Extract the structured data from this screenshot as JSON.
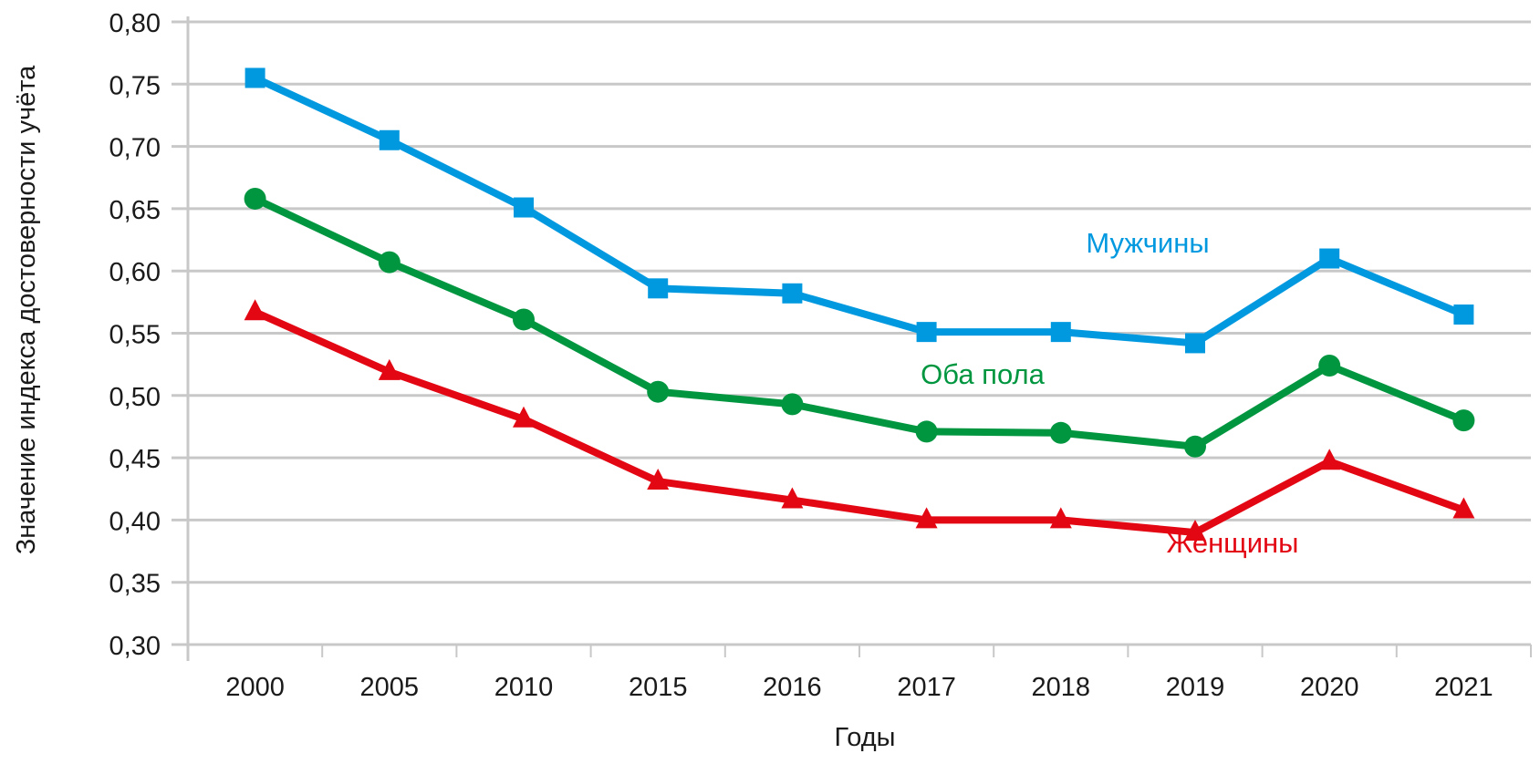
{
  "chart_data": {
    "type": "line",
    "title": "",
    "xlabel": "Годы",
    "ylabel": "Значение индекса достоверности учёта",
    "categories": [
      "2000",
      "2005",
      "2010",
      "2015",
      "2016",
      "2017",
      "2018",
      "2019",
      "2020",
      "2021"
    ],
    "ylim": [
      0.3,
      0.8
    ],
    "yticks": [
      0.3,
      0.35,
      0.4,
      0.45,
      0.5,
      0.55,
      0.6,
      0.65,
      0.7,
      0.75,
      0.8
    ],
    "ytick_labels": [
      "0,30",
      "0,35",
      "0,40",
      "0,45",
      "0,50",
      "0,55",
      "0,60",
      "0,65",
      "0,70",
      "0,75",
      "0,80"
    ],
    "grid": true,
    "legend": "inline labels",
    "series": [
      {
        "name": "Мужчины",
        "color": "#0099e0",
        "marker": "square",
        "values": [
          0.755,
          0.705,
          0.651,
          0.586,
          0.582,
          0.551,
          0.551,
          0.542,
          0.61,
          0.565
        ]
      },
      {
        "name": "Оба пола",
        "color": "#009640",
        "marker": "circle",
        "values": [
          0.658,
          0.607,
          0.561,
          0.503,
          0.493,
          0.471,
          0.47,
          0.459,
          0.524,
          0.48
        ]
      },
      {
        "name": "Женщины",
        "color": "#e30613",
        "marker": "triangle",
        "values": [
          0.567,
          0.519,
          0.481,
          0.431,
          0.416,
          0.4,
          0.4,
          0.39,
          0.447,
          0.408
        ]
      }
    ],
    "annotations": [
      {
        "series": "Мужчины",
        "text": "Мужчины",
        "near_category": "2019",
        "position": "above"
      },
      {
        "series": "Оба пола",
        "text": "Оба пола",
        "near_category": "2018",
        "position": "above"
      },
      {
        "series": "Женщины",
        "text": "Женщины",
        "near_category": "2019",
        "position": "below-right"
      }
    ],
    "gridline_color": "#c8c8c8"
  }
}
